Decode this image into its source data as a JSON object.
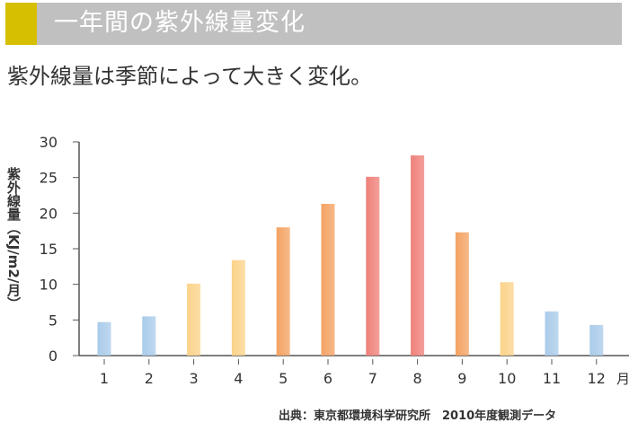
{
  "header": {
    "title": "一年間の紫外線量変化",
    "accent_color": "#d6bf00",
    "bar_color": "#c0c0c0"
  },
  "subtitle": "紫外線量は季節によって大きく変化。",
  "chart_data": {
    "type": "bar",
    "title": "",
    "ylabel": "紫外線量（KJ/m2/月）",
    "xlabel": "月",
    "categories": [
      "1",
      "2",
      "3",
      "4",
      "5",
      "6",
      "7",
      "8",
      "9",
      "10",
      "11",
      "12"
    ],
    "values": [
      4.7,
      5.5,
      10.1,
      13.4,
      18.0,
      21.3,
      25.1,
      28.1,
      17.3,
      10.3,
      6.2,
      4.3
    ],
    "colors": [
      "#a9cbea",
      "#a9cbea",
      "#fbd38a",
      "#fbd38a",
      "#f4a262",
      "#f4a262",
      "#ef8079",
      "#ef8079",
      "#f4a262",
      "#fbd38a",
      "#a9cbea",
      "#a9cbea"
    ],
    "ylim": [
      0,
      30
    ],
    "yticks": [
      "0",
      "5",
      "10",
      "15",
      "20",
      "25",
      "30"
    ],
    "grid": false,
    "legend": "none"
  },
  "source": "出典：東京都環境科学研究所　2010年度観測データ"
}
